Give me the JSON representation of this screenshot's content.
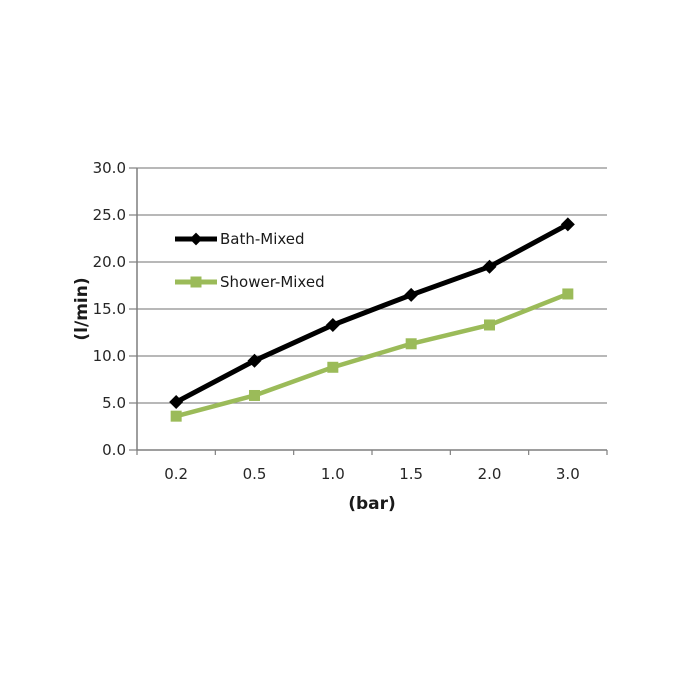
{
  "figure": {
    "background": "#ffffff"
  },
  "chart_data": {
    "type": "line",
    "title": "",
    "x_categories": [
      "0.2",
      "0.5",
      "1.0",
      "1.5",
      "2.0",
      "3.0"
    ],
    "series": [
      {
        "name": "Bath-Mixed",
        "values": [
          5.1,
          9.5,
          13.3,
          16.5,
          19.5,
          24.0
        ],
        "color": "#000000",
        "marker": "diamond",
        "line_width": 5
      },
      {
        "name": "Shower-Mixed",
        "values": [
          3.6,
          5.8,
          8.8,
          11.3,
          13.3,
          16.6
        ],
        "color": "#9bbb59",
        "marker": "square",
        "line_width": 4.5
      }
    ],
    "xlabel": "(bar)",
    "ylabel": "(l/min)",
    "ylim": [
      0,
      30
    ],
    "ytick_step": 5,
    "ytick_labels": [
      "0.0",
      "5.0",
      "10.0",
      "15.0",
      "20.0",
      "25.0",
      "30.0"
    ],
    "grid": true,
    "legend_position": "inside-top-left",
    "colors": {
      "grid": "#8e8e8e",
      "axis": "#7f7f7f",
      "tick_text": "#262626",
      "axis_title_text": "#1a1a1a"
    }
  }
}
